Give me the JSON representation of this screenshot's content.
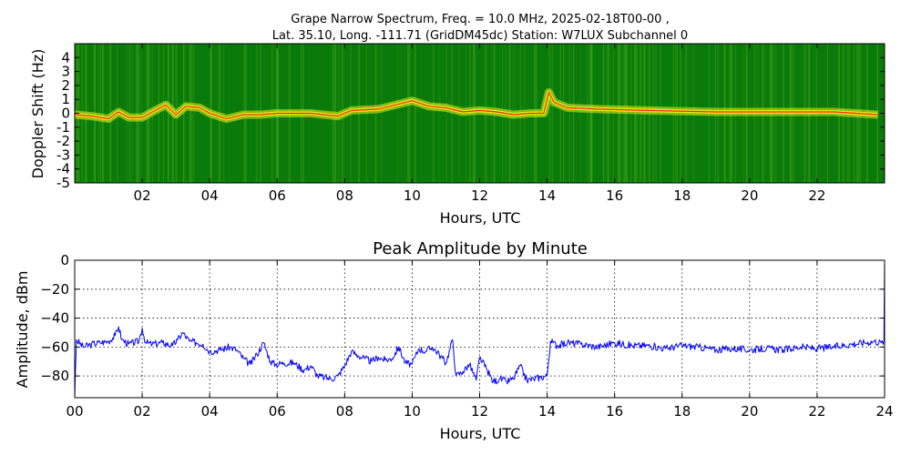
{
  "chart_data": [
    {
      "type": "heatmap",
      "title_line1": "Grape Narrow Spectrum, Freq. = 10.0 MHz, 2025-02-18T00-00 ,",
      "title_line2": "Lat.  35.10, Long. -111.71 (GridDM45dc) Station: W7LUX Subchannel 0",
      "xlabel": "Hours, UTC",
      "ylabel": "Doppler Shift (Hz)",
      "xlim": [
        0,
        24
      ],
      "ylim": [
        -5,
        5
      ],
      "xticks": [
        {
          "value": 2,
          "label": "02"
        },
        {
          "value": 4,
          "label": "04"
        },
        {
          "value": 6,
          "label": "06"
        },
        {
          "value": 8,
          "label": "08"
        },
        {
          "value": 10,
          "label": "10"
        },
        {
          "value": 12,
          "label": "12"
        },
        {
          "value": 14,
          "label": "14"
        },
        {
          "value": 16,
          "label": "16"
        },
        {
          "value": 18,
          "label": "18"
        },
        {
          "value": 20,
          "label": "20"
        },
        {
          "value": 22,
          "label": "22"
        }
      ],
      "yticks": [
        {
          "value": 4,
          "label": "4"
        },
        {
          "value": 3,
          "label": "3"
        },
        {
          "value": 2,
          "label": "2"
        },
        {
          "value": 1,
          "label": "1"
        },
        {
          "value": 0,
          "label": "0"
        },
        {
          "value": -1,
          "label": "-1"
        },
        {
          "value": -2,
          "label": "-2"
        },
        {
          "value": -3,
          "label": "-3"
        },
        {
          "value": -4,
          "label": "-4"
        },
        {
          "value": -5,
          "label": "-5"
        }
      ],
      "colors": {
        "background": "#0a7a0a",
        "noise": "#3aa016",
        "signal": "#e6ef1e",
        "peak": "#ff2a00"
      },
      "doppler_trace": [
        [
          0.0,
          -0.1
        ],
        [
          0.5,
          -0.2
        ],
        [
          1.0,
          -0.4
        ],
        [
          1.3,
          0.1
        ],
        [
          1.6,
          -0.3
        ],
        [
          2.0,
          -0.3
        ],
        [
          2.3,
          0.1
        ],
        [
          2.7,
          0.6
        ],
        [
          3.0,
          -0.1
        ],
        [
          3.3,
          0.5
        ],
        [
          3.7,
          0.4
        ],
        [
          4.0,
          0.0
        ],
        [
          4.5,
          -0.4
        ],
        [
          5.0,
          -0.1
        ],
        [
          5.5,
          -0.1
        ],
        [
          6.0,
          0.0
        ],
        [
          7.0,
          0.0
        ],
        [
          7.8,
          -0.2
        ],
        [
          8.2,
          0.2
        ],
        [
          9.0,
          0.3
        ],
        [
          10.0,
          0.9
        ],
        [
          10.5,
          0.5
        ],
        [
          11.0,
          0.4
        ],
        [
          11.5,
          0.1
        ],
        [
          12.0,
          0.2
        ],
        [
          12.5,
          0.1
        ],
        [
          13.0,
          -0.1
        ],
        [
          13.5,
          0.0
        ],
        [
          13.9,
          0.0
        ],
        [
          14.05,
          1.5
        ],
        [
          14.2,
          0.8
        ],
        [
          14.6,
          0.4
        ],
        [
          15.5,
          0.3
        ],
        [
          17.0,
          0.2
        ],
        [
          19.0,
          0.1
        ],
        [
          21.0,
          0.1
        ],
        [
          22.5,
          0.1
        ],
        [
          23.8,
          -0.1
        ]
      ]
    },
    {
      "type": "line",
      "title": "Peak Amplitude by Minute",
      "xlabel": "Hours, UTC",
      "ylabel": "Amplitude, dBm",
      "xlim": [
        0,
        24
      ],
      "ylim": [
        -95,
        0
      ],
      "grid": true,
      "line_color": "#0000ff",
      "xticks": [
        {
          "value": 0,
          "label": "00"
        },
        {
          "value": 2,
          "label": "02"
        },
        {
          "value": 4,
          "label": "04"
        },
        {
          "value": 6,
          "label": "06"
        },
        {
          "value": 8,
          "label": "08"
        },
        {
          "value": 10,
          "label": "10"
        },
        {
          "value": 12,
          "label": "12"
        },
        {
          "value": 14,
          "label": "14"
        },
        {
          "value": 16,
          "label": "16"
        },
        {
          "value": 18,
          "label": "18"
        },
        {
          "value": 20,
          "label": "20"
        },
        {
          "value": 22,
          "label": "22"
        },
        {
          "value": 24,
          "label": "24"
        }
      ],
      "yticks": [
        {
          "value": 0,
          "label": "0"
        },
        {
          "value": -20,
          "label": "−20"
        },
        {
          "value": -40,
          "label": "−40"
        },
        {
          "value": -60,
          "label": "−60"
        },
        {
          "value": -80,
          "label": "−80"
        }
      ],
      "series": [
        {
          "x": [
            0.0,
            0.05,
            0.25,
            0.5,
            0.75,
            1.0,
            1.2,
            1.3,
            1.4,
            1.6,
            1.9,
            2.0,
            2.1,
            2.3,
            2.6,
            2.9,
            3.05,
            3.2,
            3.4,
            3.6,
            3.8,
            4.0,
            4.3,
            4.6,
            4.8,
            5.0,
            5.2,
            5.4,
            5.6,
            5.8,
            5.95,
            6.2,
            6.5,
            6.8,
            7.0,
            7.2,
            7.4,
            7.6,
            7.8,
            8.0,
            8.2,
            8.4,
            8.6,
            8.8,
            9.0,
            9.2,
            9.4,
            9.6,
            9.8,
            10.0,
            10.2,
            10.4,
            10.6,
            10.8,
            11.0,
            11.2,
            11.3,
            11.5,
            11.7,
            11.9,
            12.0,
            12.2,
            12.4,
            12.6,
            12.8,
            13.0,
            13.2,
            13.4,
            13.6,
            13.8,
            14.0,
            14.1,
            14.3,
            14.6,
            15.0,
            15.5,
            16.0,
            16.5,
            17.0,
            17.5,
            18.0,
            18.5,
            19.0,
            19.5,
            20.0,
            20.5,
            21.0,
            21.5,
            22.0,
            22.5,
            23.0,
            23.4,
            23.7,
            23.9,
            23.98,
            24.0
          ],
          "y": [
            -95,
            -55,
            -60,
            -58,
            -57,
            -56,
            -52,
            -46,
            -55,
            -58,
            -56,
            -47,
            -57,
            -58,
            -57,
            -59,
            -55,
            -50,
            -56,
            -57,
            -58,
            -63,
            -62,
            -60,
            -62,
            -68,
            -72,
            -65,
            -57,
            -70,
            -72,
            -71,
            -71,
            -76,
            -73,
            -80,
            -81,
            -82,
            -80,
            -73,
            -63,
            -66,
            -68,
            -70,
            -67,
            -69,
            -68,
            -60,
            -71,
            -72,
            -61,
            -63,
            -60,
            -65,
            -71,
            -55,
            -80,
            -77,
            -72,
            -83,
            -67,
            -75,
            -84,
            -82,
            -84,
            -82,
            -73,
            -83,
            -82,
            -81,
            -80,
            -56,
            -59,
            -57,
            -58,
            -60,
            -57,
            -59,
            -59,
            -61,
            -59,
            -60,
            -62,
            -61,
            -62,
            -61,
            -62,
            -60,
            -61,
            -60,
            -58,
            -57,
            -56,
            -57,
            -56,
            0
          ]
        }
      ]
    }
  ]
}
